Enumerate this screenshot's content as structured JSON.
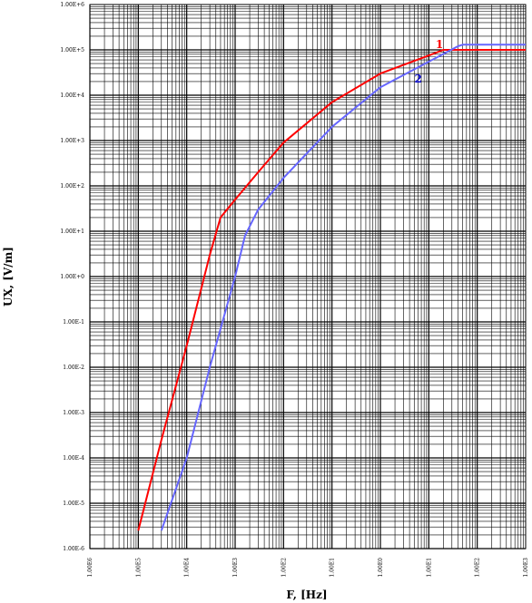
{
  "chart_data": {
    "type": "line",
    "title": "",
    "xlabel": "F, [Hz]",
    "ylabel": "UX, [V/m]",
    "x_scale": "log",
    "y_scale": "log",
    "xlim": [
      1e-06,
      1000
    ],
    "ylim": [
      1e-06,
      1000000
    ],
    "grid": true,
    "x_tick_labels": [
      "1.00E6",
      "1.00E5",
      "1.00E4",
      "1.00E3",
      "1.00E2",
      "1.00E1",
      "1.00E0",
      "1.00E1",
      "1.00E2",
      "1.00E3"
    ],
    "y_tick_labels": [
      "1.00E+6",
      "1.00E+5",
      "1.00E+4",
      "1.00E+3",
      "1.00E+2",
      "1.00E+1",
      "1.00E+0",
      "1.00E-1",
      "1.00E-2",
      "1.00E-3",
      "1.00E-4",
      "1.00E-5",
      "1.00E-6"
    ],
    "series": [
      {
        "name": "1",
        "color": "#ff0000",
        "points": [
          [
            1e-05,
            2.5e-06
          ],
          [
            3e-05,
            0.00025
          ],
          [
            0.0001,
            0.03
          ],
          [
            0.0003,
            3
          ],
          [
            0.0005,
            20
          ],
          [
            0.001,
            50
          ],
          [
            0.003,
            200
          ],
          [
            0.01,
            900
          ],
          [
            0.1,
            7000
          ],
          [
            1,
            30000
          ],
          [
            10,
            75000
          ],
          [
            20,
            100000
          ],
          [
            1000,
            100000
          ]
        ]
      },
      {
        "name": "2",
        "color": "#6666ff",
        "points": [
          [
            3e-05,
            2.5e-06
          ],
          [
            0.0001,
            0.0001
          ],
          [
            0.0003,
            0.01
          ],
          [
            0.001,
            1
          ],
          [
            0.0016,
            8
          ],
          [
            0.003,
            30
          ],
          [
            0.01,
            150
          ],
          [
            0.1,
            2000
          ],
          [
            1,
            15000
          ],
          [
            10,
            55000
          ],
          [
            40,
            120000
          ],
          [
            50,
            130000
          ],
          [
            1000,
            130000
          ]
        ]
      }
    ]
  }
}
